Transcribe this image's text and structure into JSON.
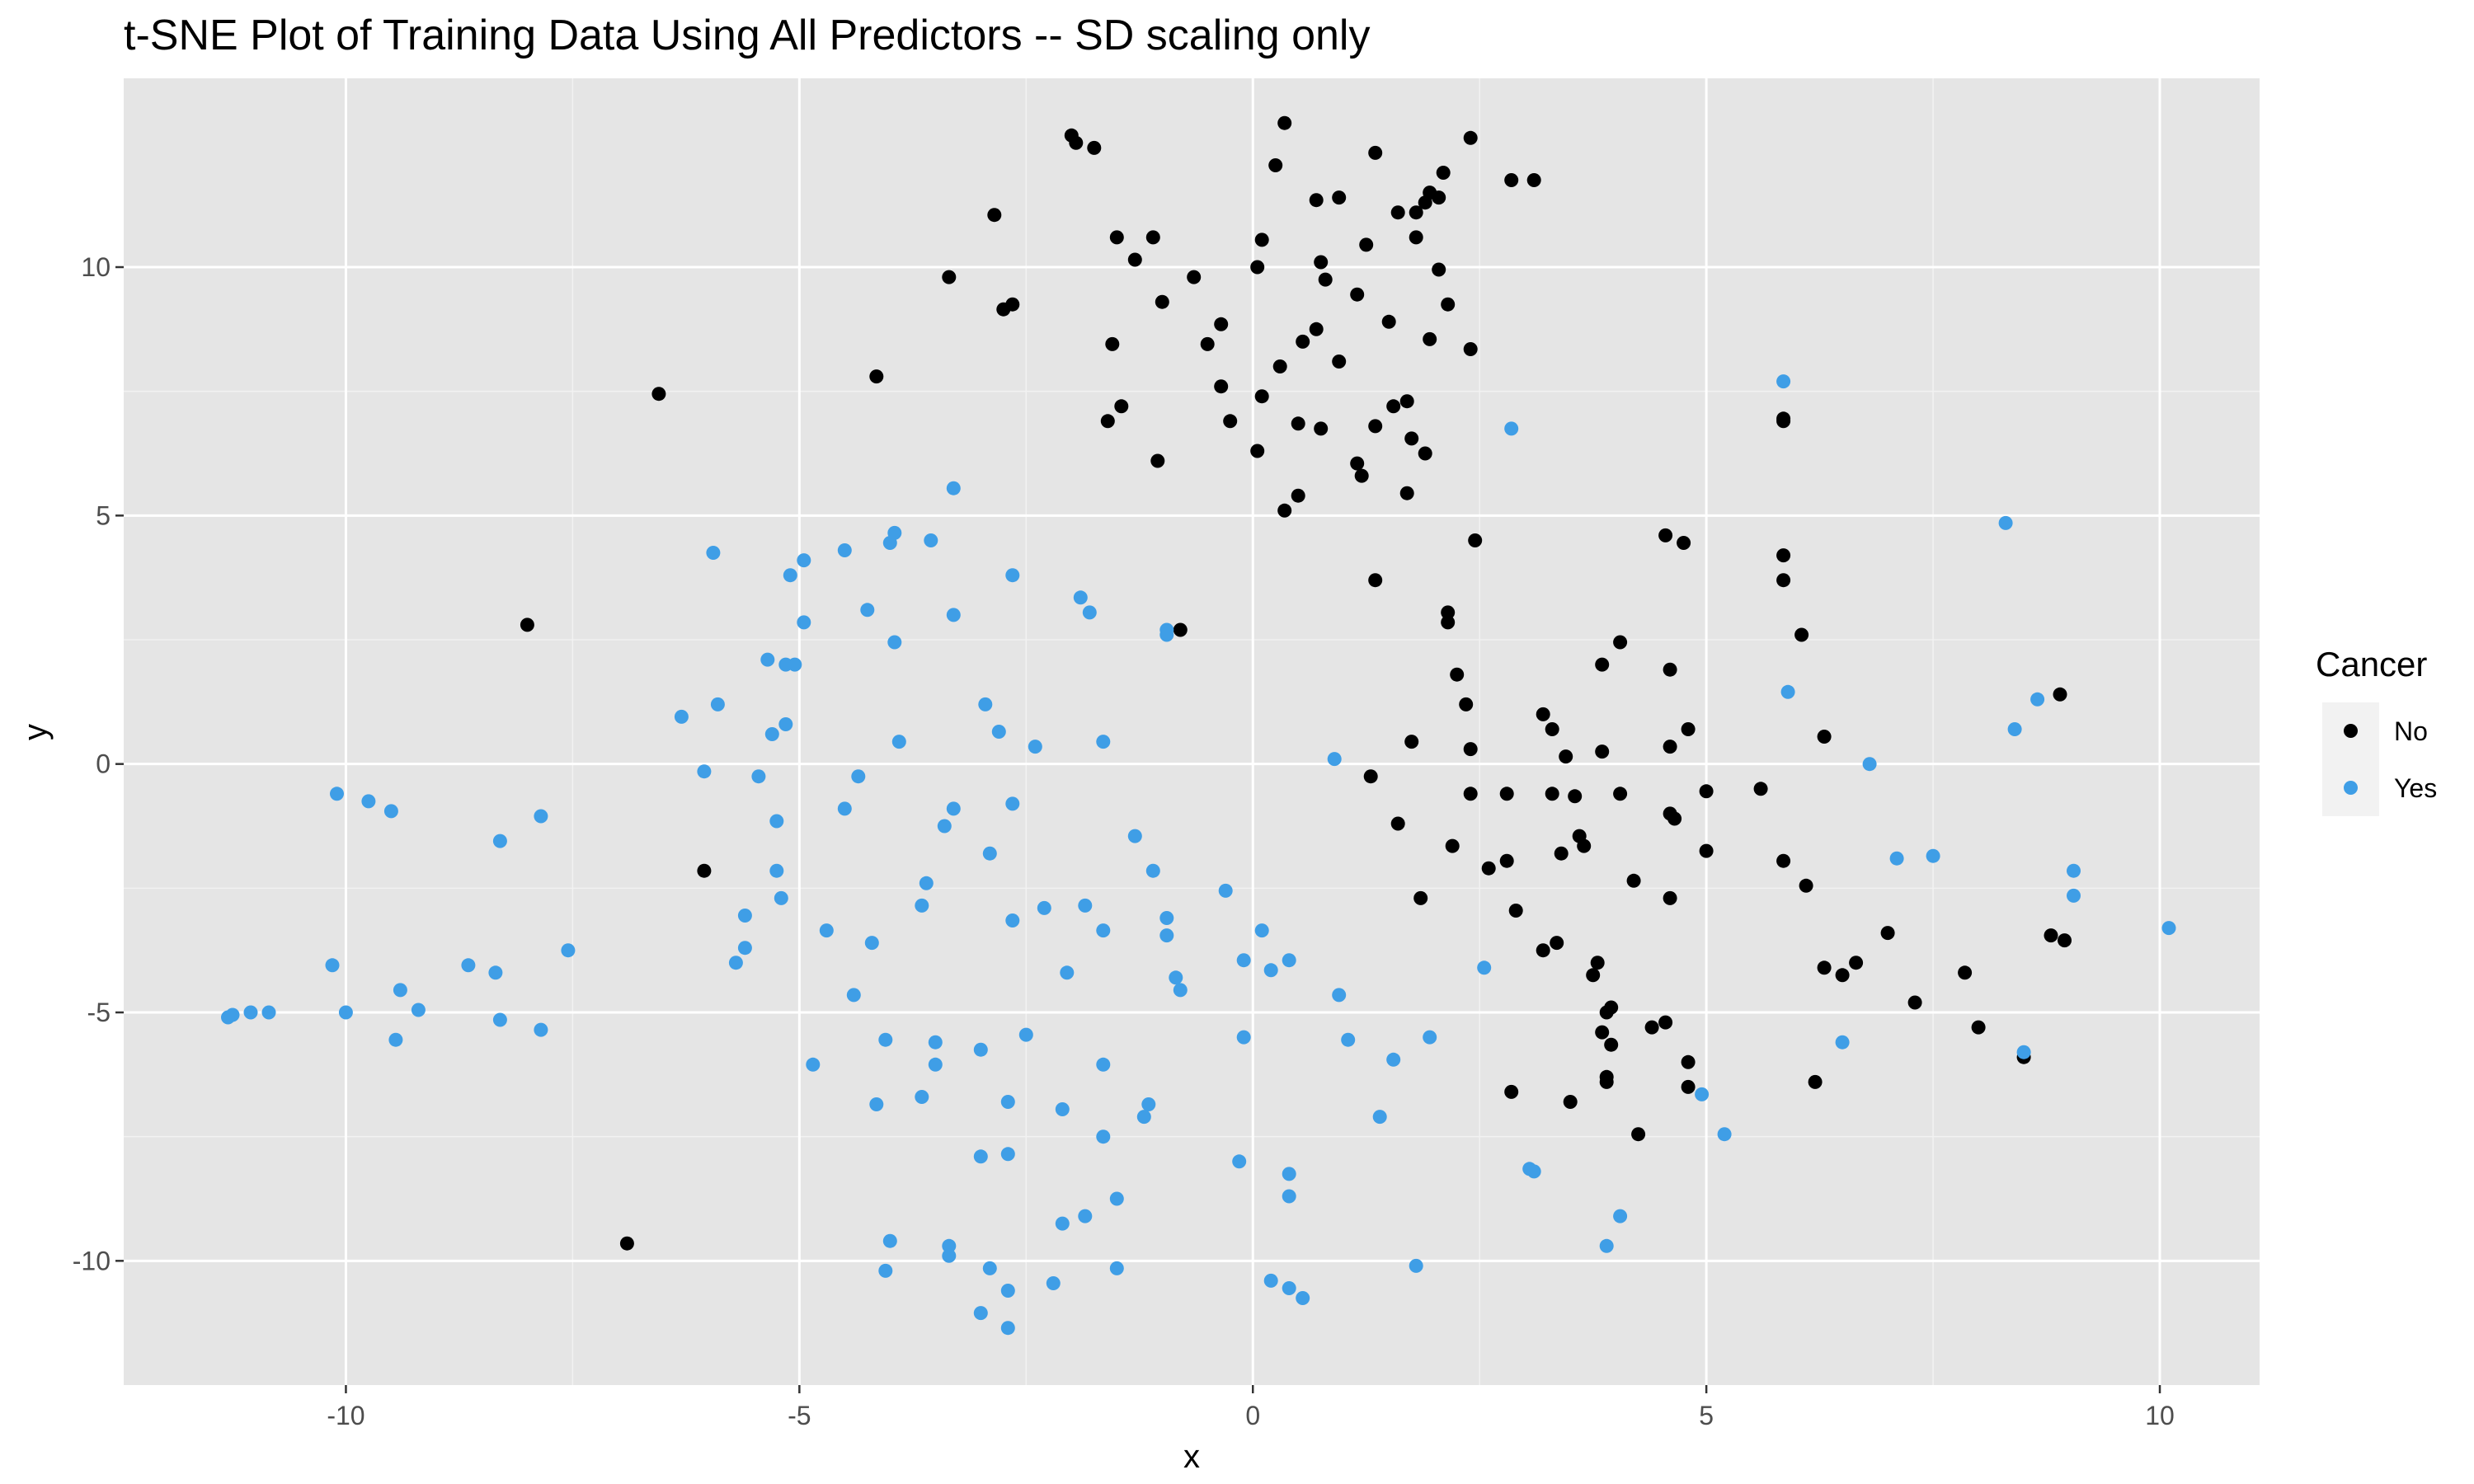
{
  "chart_data": {
    "type": "scatter",
    "title": "t-SNE Plot of Training Data Using All Predictors -- SD scaling only",
    "xlabel": "x",
    "ylabel": "y",
    "xlim": [
      -12.45,
      11.1
    ],
    "ylim": [
      -12.5,
      13.8
    ],
    "x_ticks": [
      -10,
      -5,
      0,
      5,
      10
    ],
    "y_ticks": [
      -10,
      -5,
      0,
      5,
      10
    ],
    "x_tick_labels": [
      "-10",
      "-5",
      "0",
      "5",
      "10"
    ],
    "y_tick_labels": [
      "-10",
      "-5",
      "0",
      "5",
      "10"
    ],
    "grid": true,
    "legend": {
      "title": "Cancer",
      "position": "right",
      "entries": [
        {
          "label": "No",
          "color": "#000000"
        },
        {
          "label": "Yes",
          "color": "#3f9ee6"
        }
      ]
    },
    "series": [
      {
        "name": "No",
        "color": "#000000",
        "points": [
          [
            -2.0,
            12.65
          ],
          [
            -1.95,
            12.5
          ],
          [
            -1.75,
            12.4
          ],
          [
            0.35,
            12.9
          ],
          [
            0.25,
            12.05
          ],
          [
            1.35,
            12.3
          ],
          [
            2.4,
            12.6
          ],
          [
            2.1,
            11.9
          ],
          [
            2.85,
            11.75
          ],
          [
            3.1,
            11.75
          ],
          [
            1.95,
            11.5
          ],
          [
            2.05,
            11.4
          ],
          [
            1.9,
            11.3
          ],
          [
            1.6,
            11.1
          ],
          [
            1.8,
            11.1
          ],
          [
            0.7,
            11.35
          ],
          [
            0.95,
            11.4
          ],
          [
            -2.85,
            11.05
          ],
          [
            -1.5,
            10.6
          ],
          [
            -1.1,
            10.6
          ],
          [
            0.1,
            10.55
          ],
          [
            1.25,
            10.45
          ],
          [
            1.8,
            10.6
          ],
          [
            -1.3,
            10.15
          ],
          [
            0.75,
            10.1
          ],
          [
            0.05,
            10.0
          ],
          [
            2.05,
            9.95
          ],
          [
            -3.35,
            9.8
          ],
          [
            -0.65,
            9.8
          ],
          [
            0.8,
            9.75
          ],
          [
            1.15,
            9.45
          ],
          [
            -2.75,
            9.15
          ],
          [
            -2.65,
            9.25
          ],
          [
            -1.0,
            9.3
          ],
          [
            2.15,
            9.25
          ],
          [
            -1.55,
            8.45
          ],
          [
            -0.35,
            8.85
          ],
          [
            1.5,
            8.9
          ],
          [
            -0.5,
            8.45
          ],
          [
            0.55,
            8.5
          ],
          [
            0.7,
            8.75
          ],
          [
            1.95,
            8.55
          ],
          [
            2.4,
            8.35
          ],
          [
            0.95,
            8.1
          ],
          [
            0.3,
            8.0
          ],
          [
            -4.15,
            7.8
          ],
          [
            -0.35,
            7.6
          ],
          [
            0.1,
            7.4
          ],
          [
            -6.55,
            7.45
          ],
          [
            -1.45,
            7.2
          ],
          [
            -1.6,
            6.9
          ],
          [
            -0.25,
            6.9
          ],
          [
            0.5,
            6.85
          ],
          [
            0.75,
            6.75
          ],
          [
            1.35,
            6.8
          ],
          [
            1.55,
            7.2
          ],
          [
            1.7,
            7.3
          ],
          [
            1.75,
            6.55
          ],
          [
            1.9,
            6.25
          ],
          [
            0.05,
            6.3
          ],
          [
            -1.05,
            6.1
          ],
          [
            1.15,
            6.05
          ],
          [
            1.2,
            5.8
          ],
          [
            0.5,
            5.4
          ],
          [
            1.7,
            5.45
          ],
          [
            0.35,
            5.1
          ],
          [
            2.45,
            4.5
          ],
          [
            1.35,
            3.7
          ],
          [
            4.55,
            4.6
          ],
          [
            4.75,
            4.45
          ],
          [
            5.85,
            4.2
          ],
          [
            5.85,
            3.7
          ],
          [
            5.85,
            6.95
          ],
          [
            5.85,
            6.9
          ],
          [
            2.15,
            3.05
          ],
          [
            2.15,
            2.85
          ],
          [
            6.05,
            2.6
          ],
          [
            4.05,
            2.45
          ],
          [
            3.85,
            2.0
          ],
          [
            4.6,
            1.9
          ],
          [
            2.25,
            1.8
          ],
          [
            2.35,
            1.2
          ],
          [
            8.9,
            1.4
          ],
          [
            -0.8,
            2.7
          ],
          [
            -8.0,
            2.8
          ],
          [
            3.2,
            1.0
          ],
          [
            3.3,
            0.7
          ],
          [
            4.8,
            0.7
          ],
          [
            6.3,
            0.55
          ],
          [
            1.75,
            0.45
          ],
          [
            2.4,
            0.3
          ],
          [
            3.85,
            0.25
          ],
          [
            4.6,
            0.35
          ],
          [
            3.45,
            0.15
          ],
          [
            1.3,
            -0.25
          ],
          [
            2.4,
            -0.6
          ],
          [
            2.8,
            -0.6
          ],
          [
            3.3,
            -0.6
          ],
          [
            3.55,
            -0.65
          ],
          [
            4.05,
            -0.6
          ],
          [
            5.6,
            -0.5
          ],
          [
            5.0,
            -0.55
          ],
          [
            4.6,
            -1.0
          ],
          [
            4.65,
            -1.1
          ],
          [
            1.6,
            -1.2
          ],
          [
            3.6,
            -1.45
          ],
          [
            3.65,
            -1.65
          ],
          [
            3.4,
            -1.8
          ],
          [
            2.2,
            -1.65
          ],
          [
            2.8,
            -1.95
          ],
          [
            2.6,
            -2.1
          ],
          [
            5.0,
            -1.75
          ],
          [
            5.85,
            -1.95
          ],
          [
            4.2,
            -2.35
          ],
          [
            6.1,
            -2.45
          ],
          [
            -6.05,
            -2.15
          ],
          [
            1.85,
            -2.7
          ],
          [
            4.6,
            -2.7
          ],
          [
            2.9,
            -2.95
          ],
          [
            7.0,
            -3.4
          ],
          [
            8.8,
            -3.45
          ],
          [
            8.95,
            -3.55
          ],
          [
            3.35,
            -3.6
          ],
          [
            3.2,
            -3.75
          ],
          [
            3.8,
            -4.0
          ],
          [
            3.75,
            -4.25
          ],
          [
            6.3,
            -4.1
          ],
          [
            6.65,
            -4.0
          ],
          [
            6.5,
            -4.25
          ],
          [
            7.85,
            -4.2
          ],
          [
            7.3,
            -4.8
          ],
          [
            3.95,
            -4.9
          ],
          [
            3.9,
            -5.0
          ],
          [
            4.55,
            -5.2
          ],
          [
            4.4,
            -5.3
          ],
          [
            8.0,
            -5.3
          ],
          [
            3.85,
            -5.4
          ],
          [
            3.95,
            -5.65
          ],
          [
            4.8,
            -6.0
          ],
          [
            8.5,
            -5.9
          ],
          [
            3.9,
            -6.3
          ],
          [
            3.9,
            -6.4
          ],
          [
            6.2,
            -6.4
          ],
          [
            4.8,
            -6.5
          ],
          [
            2.85,
            -6.6
          ],
          [
            3.5,
            -6.8
          ],
          [
            4.25,
            -7.45
          ],
          [
            -6.9,
            -9.65
          ]
        ]
      },
      {
        "name": "Yes",
        "color": "#3f9ee6",
        "points": [
          [
            5.85,
            7.7
          ],
          [
            2.85,
            6.75
          ],
          [
            8.3,
            4.85
          ],
          [
            -3.3,
            5.55
          ],
          [
            -3.95,
            4.65
          ],
          [
            -4.0,
            4.45
          ],
          [
            -3.55,
            4.5
          ],
          [
            -5.95,
            4.25
          ],
          [
            -4.5,
            4.3
          ],
          [
            -4.95,
            4.1
          ],
          [
            -5.1,
            3.8
          ],
          [
            -2.65,
            3.8
          ],
          [
            -1.9,
            3.35
          ],
          [
            -1.8,
            3.05
          ],
          [
            -4.25,
            3.1
          ],
          [
            -3.3,
            3.0
          ],
          [
            -4.95,
            2.85
          ],
          [
            -0.95,
            2.7
          ],
          [
            -0.95,
            2.6
          ],
          [
            -3.95,
            2.45
          ],
          [
            -5.35,
            2.1
          ],
          [
            -5.15,
            2.0
          ],
          [
            -5.05,
            2.0
          ],
          [
            5.9,
            1.45
          ],
          [
            8.65,
            1.3
          ],
          [
            -5.9,
            1.2
          ],
          [
            -2.95,
            1.2
          ],
          [
            -6.3,
            0.95
          ],
          [
            -5.15,
            0.8
          ],
          [
            -2.8,
            0.65
          ],
          [
            -5.3,
            0.6
          ],
          [
            -3.9,
            0.45
          ],
          [
            -1.65,
            0.45
          ],
          [
            -2.4,
            0.35
          ],
          [
            8.4,
            0.7
          ],
          [
            0.9,
            0.1
          ],
          [
            6.8,
            0.0
          ],
          [
            -6.05,
            -0.15
          ],
          [
            -5.45,
            -0.25
          ],
          [
            -4.35,
            -0.25
          ],
          [
            -10.1,
            -0.6
          ],
          [
            -9.75,
            -0.75
          ],
          [
            -9.5,
            -0.95
          ],
          [
            -7.85,
            -1.05
          ],
          [
            -4.5,
            -0.9
          ],
          [
            -3.3,
            -0.9
          ],
          [
            -2.65,
            -0.8
          ],
          [
            -3.4,
            -1.25
          ],
          [
            -5.25,
            -1.15
          ],
          [
            -1.3,
            -1.45
          ],
          [
            -8.3,
            -1.55
          ],
          [
            -2.9,
            -1.8
          ],
          [
            -1.1,
            -2.15
          ],
          [
            -5.25,
            -2.15
          ],
          [
            -3.6,
            -2.4
          ],
          [
            7.1,
            -1.9
          ],
          [
            7.5,
            -1.85
          ],
          [
            9.05,
            -2.15
          ],
          [
            9.05,
            -2.65
          ],
          [
            -5.2,
            -2.7
          ],
          [
            -0.3,
            -2.55
          ],
          [
            -1.85,
            -2.85
          ],
          [
            -2.3,
            -2.9
          ],
          [
            -3.65,
            -2.85
          ],
          [
            -5.6,
            -3.05
          ],
          [
            -0.95,
            -3.1
          ],
          [
            -2.65,
            -3.15
          ],
          [
            -1.65,
            -3.35
          ],
          [
            -0.95,
            -3.45
          ],
          [
            0.1,
            -3.35
          ],
          [
            -4.7,
            -3.35
          ],
          [
            -4.2,
            -3.6
          ],
          [
            -7.55,
            -3.75
          ],
          [
            -5.6,
            -3.7
          ],
          [
            -5.7,
            -4.0
          ],
          [
            -8.65,
            -4.05
          ],
          [
            -10.15,
            -4.05
          ],
          [
            -8.35,
            -4.2
          ],
          [
            0.4,
            -3.95
          ],
          [
            -0.1,
            -3.95
          ],
          [
            0.2,
            -4.15
          ],
          [
            -2.05,
            -4.2
          ],
          [
            -0.85,
            -4.3
          ],
          [
            -0.8,
            -4.55
          ],
          [
            2.55,
            -4.1
          ],
          [
            10.1,
            -3.3
          ],
          [
            -4.4,
            -4.65
          ],
          [
            -9.4,
            -4.55
          ],
          [
            0.95,
            -4.65
          ],
          [
            -9.2,
            -4.95
          ],
          [
            -10.85,
            -5.0
          ],
          [
            -11.05,
            -5.0
          ],
          [
            -11.25,
            -5.05
          ],
          [
            -11.3,
            -5.1
          ],
          [
            -10.0,
            -5.0
          ],
          [
            -8.3,
            -5.15
          ],
          [
            -7.85,
            -5.35
          ],
          [
            -9.45,
            -5.55
          ],
          [
            -2.5,
            -5.45
          ],
          [
            -0.1,
            -5.5
          ],
          [
            1.05,
            -5.55
          ],
          [
            1.95,
            -5.5
          ],
          [
            6.5,
            -5.6
          ],
          [
            -4.05,
            -5.55
          ],
          [
            -3.5,
            -5.6
          ],
          [
            -3.0,
            -5.75
          ],
          [
            -3.5,
            -6.05
          ],
          [
            -4.85,
            -6.05
          ],
          [
            -1.65,
            -6.05
          ],
          [
            1.55,
            -5.95
          ],
          [
            8.5,
            -5.8
          ],
          [
            4.95,
            -6.65
          ],
          [
            -3.65,
            -6.7
          ],
          [
            -4.15,
            -6.85
          ],
          [
            -2.7,
            -6.8
          ],
          [
            -1.15,
            -6.85
          ],
          [
            -2.1,
            -6.95
          ],
          [
            -1.2,
            -7.1
          ],
          [
            1.4,
            -7.1
          ],
          [
            5.2,
            -7.45
          ],
          [
            -1.65,
            -7.5
          ],
          [
            -3.0,
            -7.9
          ],
          [
            -2.7,
            -7.85
          ],
          [
            -0.15,
            -8.0
          ],
          [
            3.05,
            -8.15
          ],
          [
            3.1,
            -8.2
          ],
          [
            0.4,
            -8.25
          ],
          [
            0.4,
            -8.7
          ],
          [
            -1.5,
            -8.75
          ],
          [
            -1.85,
            -9.1
          ],
          [
            4.05,
            -9.1
          ],
          [
            -2.1,
            -9.25
          ],
          [
            -4.0,
            -9.6
          ],
          [
            -3.35,
            -9.7
          ],
          [
            3.9,
            -9.7
          ],
          [
            -3.35,
            -9.9
          ],
          [
            -4.05,
            -10.2
          ],
          [
            -2.9,
            -10.15
          ],
          [
            -1.5,
            -10.15
          ],
          [
            1.8,
            -10.1
          ],
          [
            0.2,
            -10.4
          ],
          [
            -2.2,
            -10.45
          ],
          [
            0.4,
            -10.55
          ],
          [
            -2.7,
            -10.6
          ],
          [
            0.55,
            -10.75
          ],
          [
            -3.0,
            -11.05
          ],
          [
            -2.7,
            -11.35
          ]
        ]
      }
    ]
  }
}
